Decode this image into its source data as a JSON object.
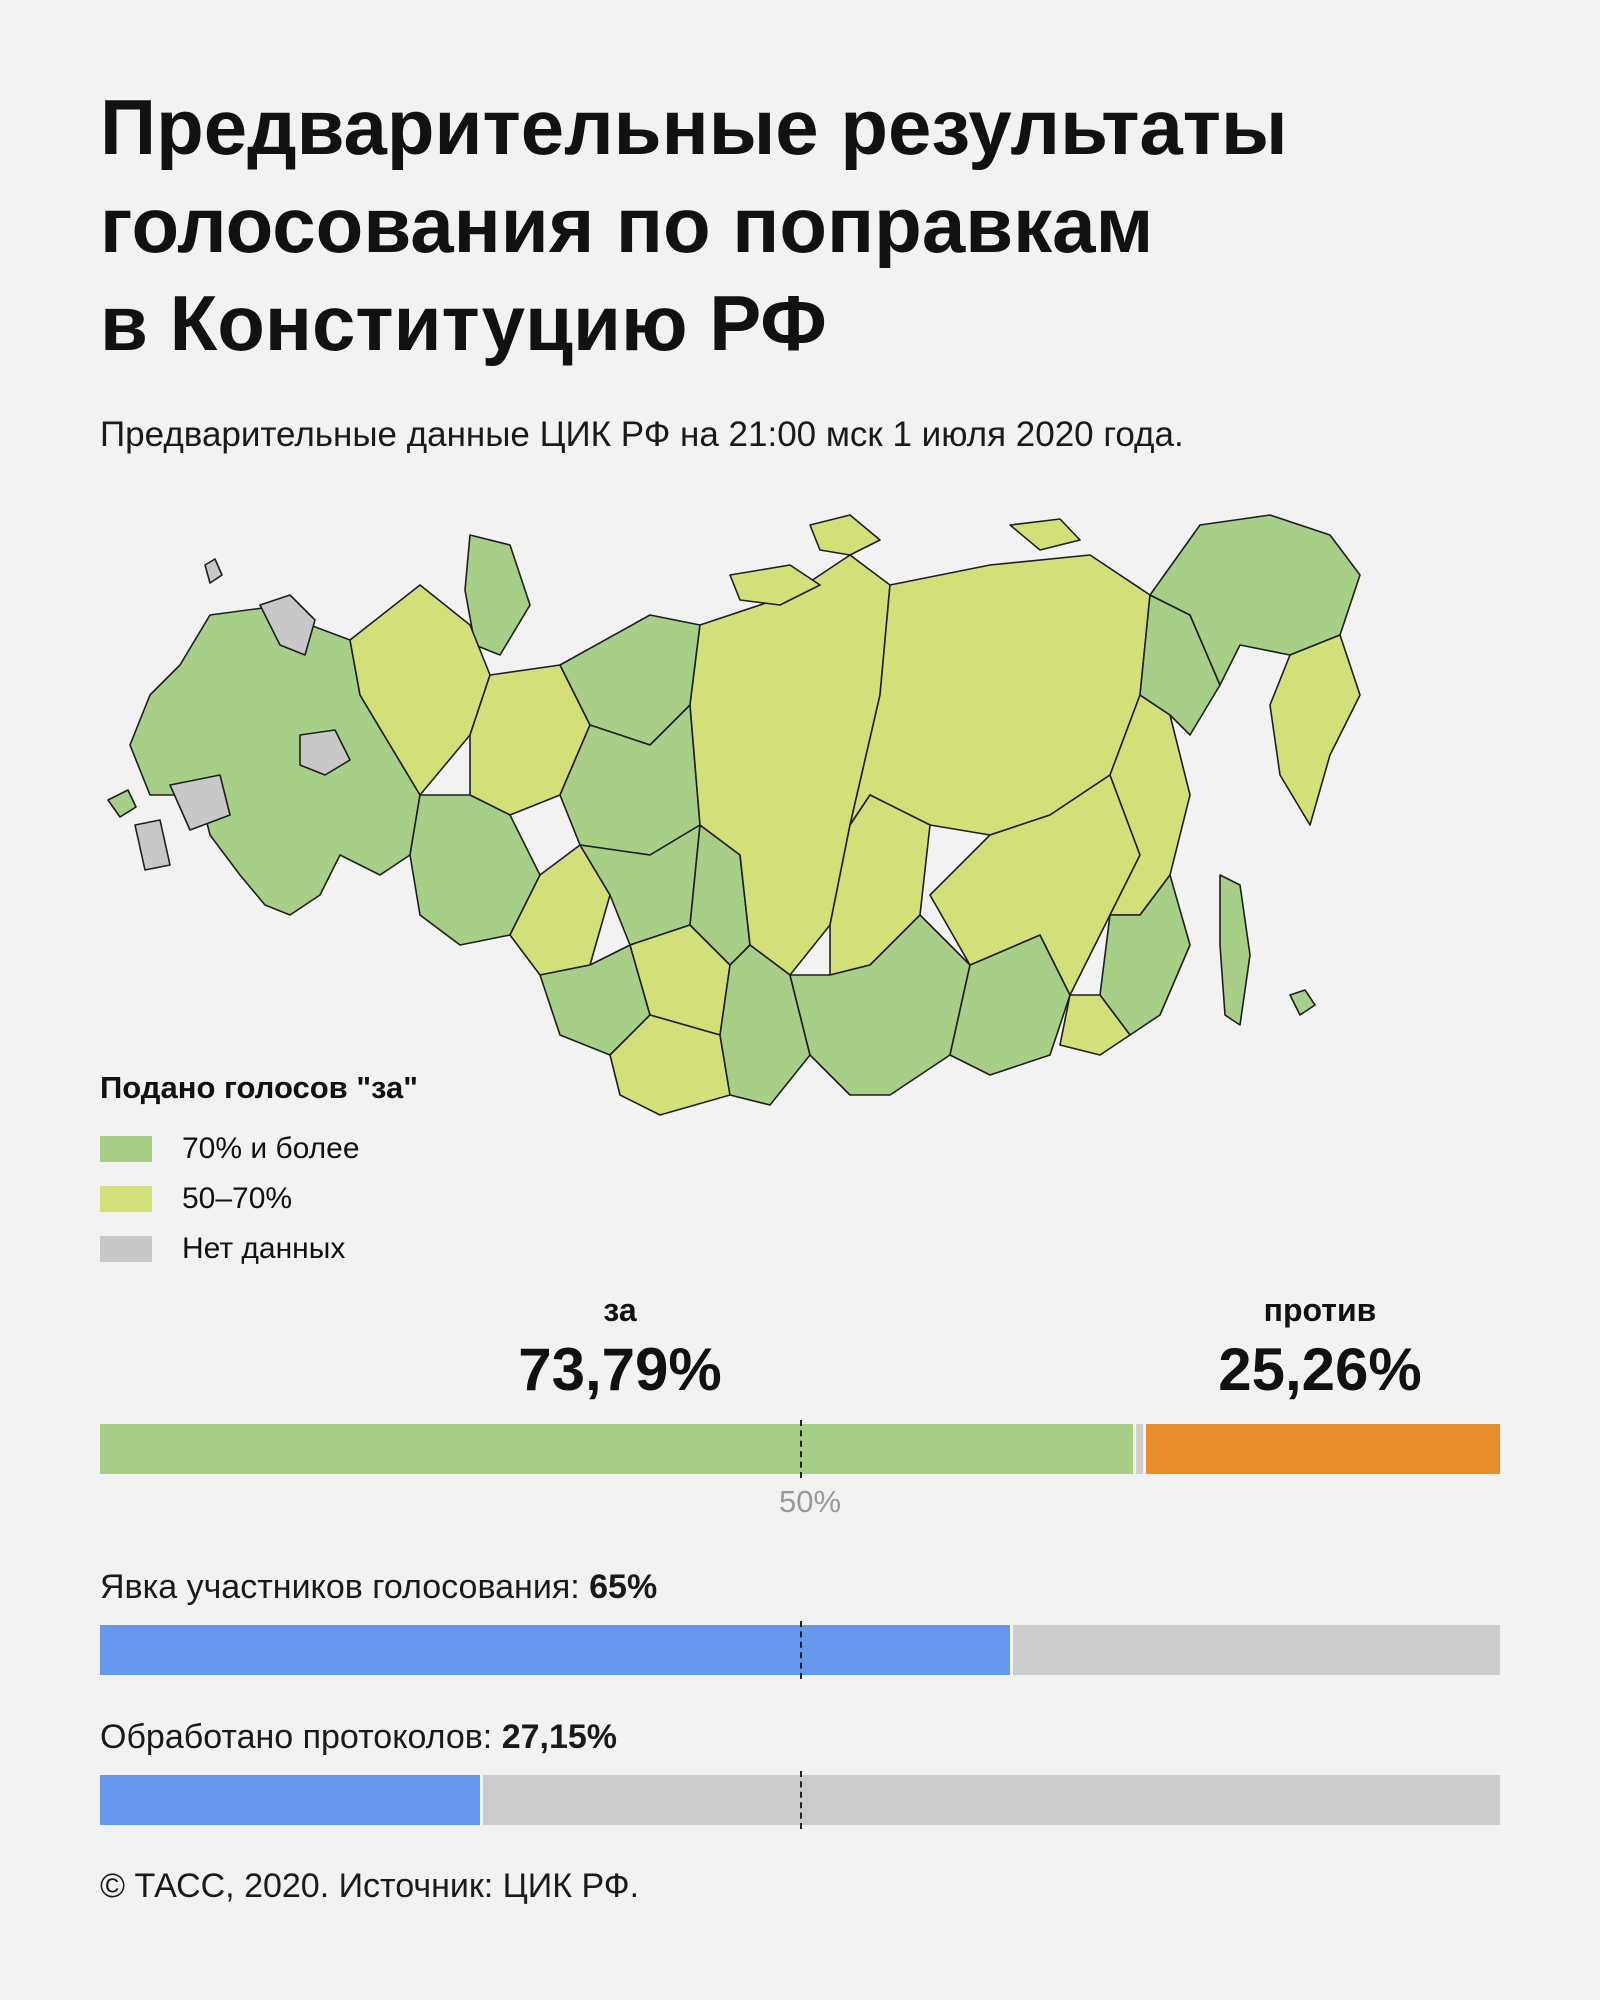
{
  "title_lines": [
    "Предварительные результаты",
    "голосования по поправкам",
    "в Конституцию РФ"
  ],
  "subtitle": "Предварительные данные ЦИК РФ на 21:00 мск 1 июля 2020 года.",
  "legend": {
    "title": "Подано голосов \"за\"",
    "items": [
      {
        "label": "70% и более",
        "color": "#a8cf88"
      },
      {
        "label": "50–70%",
        "color": "#d3e07a"
      },
      {
        "label": "Нет данных",
        "color": "#c8c8c8"
      }
    ]
  },
  "results": {
    "for": {
      "label": "за",
      "value_text": "73,79%",
      "fraction": 0.7379,
      "color": "#a8cf88"
    },
    "against": {
      "label": "против",
      "value_text": "25,26%",
      "fraction": 0.2526,
      "color": "#e98d2f"
    },
    "other_color": "#cfcfcf",
    "midline_label": "50%"
  },
  "turnout": {
    "label": "Явка участников голосования: ",
    "value_text": "65%",
    "fraction": 0.65,
    "fill_color": "#6699ee",
    "rest_color": "#cccccc"
  },
  "protocols": {
    "label": "Обработано протоколов: ",
    "value_text": "27,15%",
    "fraction": 0.2715,
    "fill_color": "#6699ee",
    "rest_color": "#cccccc"
  },
  "footer": "© ТАСС, 2020. Источник: ЦИК РФ.",
  "map": {
    "colors": {
      "high": "#a8cf88",
      "mid": "#d3e07a",
      "none": "#c8c8c8",
      "border": "#1e1e1e"
    }
  }
}
